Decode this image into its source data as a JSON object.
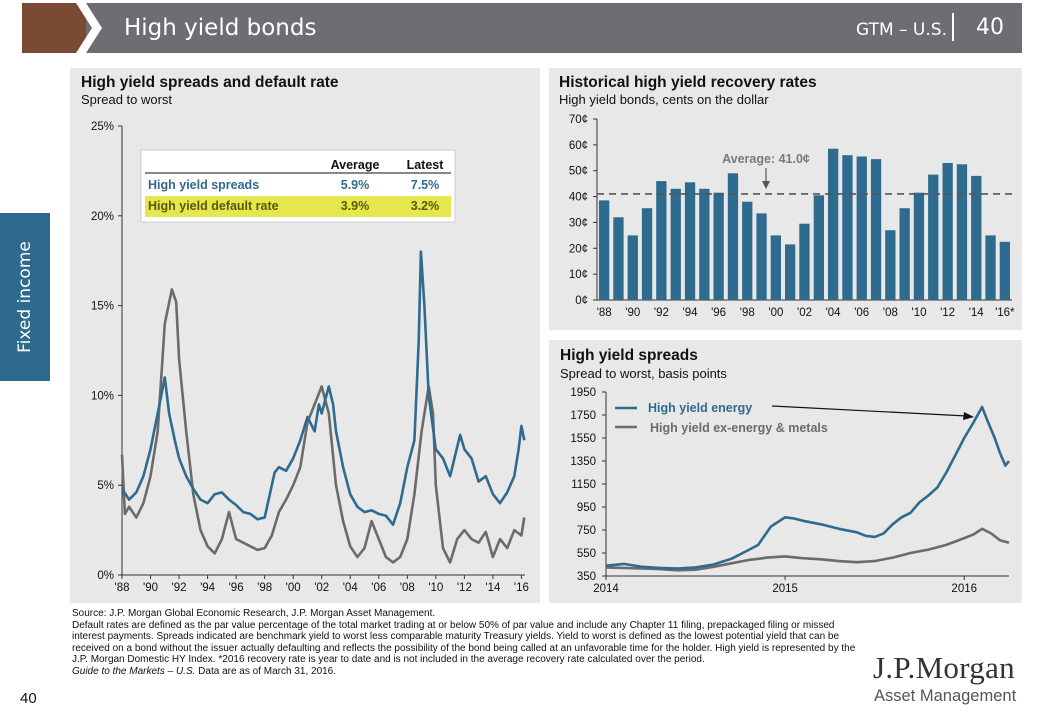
{
  "header": {
    "title": "High yield bonds",
    "region": "GTM – U.S.",
    "page": "40"
  },
  "side_tab": {
    "label": "Fixed income"
  },
  "colors": {
    "header_gray": "#6d6e71",
    "brown": "#7a4a35",
    "side_blue": "#2d6a8e",
    "series_blue": "#2f6b8f",
    "series_gray": "#6b6b6b",
    "bar_blue": "#2f6b8f",
    "highlight": "#e6e64e",
    "highlight_text": "#5a5a00"
  },
  "legend_table": {
    "headers": [
      "Average",
      "Latest"
    ],
    "rows": [
      {
        "label": "High yield spreads",
        "average": "5.9%",
        "latest": "7.5%"
      },
      {
        "label": "High yield default rate",
        "average": "3.9%",
        "latest": "3.2%"
      }
    ]
  },
  "chart_data": [
    {
      "type": "line",
      "title": "High yield spreads and default rate",
      "subtitle": "Spread to worst",
      "ylim": [
        0,
        25
      ],
      "y_ticks": [
        "0%",
        "5%",
        "10%",
        "15%",
        "20%",
        "25%"
      ],
      "x_ticks": [
        "'88",
        "'90",
        "'92",
        "'94",
        "'96",
        "'98",
        "'00",
        "'02",
        "'04",
        "'06",
        "'08",
        "'10",
        "'12",
        "'14",
        "'16"
      ],
      "xlim": [
        1988,
        2016.25
      ],
      "series": [
        {
          "name": "High yield spreads",
          "color": "#2f6b8f",
          "points": [
            [
              1988,
              4.8
            ],
            [
              1988.5,
              4.2
            ],
            [
              1989,
              4.6
            ],
            [
              1989.5,
              5.5
            ],
            [
              1990,
              7.0
            ],
            [
              1990.5,
              9.0
            ],
            [
              1991,
              11.0
            ],
            [
              1991.3,
              9.0
            ],
            [
              1991.7,
              7.5
            ],
            [
              1992,
              6.5
            ],
            [
              1992.5,
              5.5
            ],
            [
              1993,
              4.8
            ],
            [
              1993.5,
              4.2
            ],
            [
              1994,
              4.0
            ],
            [
              1994.5,
              4.5
            ],
            [
              1995,
              4.6
            ],
            [
              1995.5,
              4.2
            ],
            [
              1996,
              3.9
            ],
            [
              1996.5,
              3.5
            ],
            [
              1997,
              3.4
            ],
            [
              1997.5,
              3.1
            ],
            [
              1998,
              3.2
            ],
            [
              1998.7,
              5.7
            ],
            [
              1999,
              6.0
            ],
            [
              1999.5,
              5.8
            ],
            [
              2000,
              6.5
            ],
            [
              2000.5,
              7.5
            ],
            [
              2001,
              8.8
            ],
            [
              2001.5,
              8.0
            ],
            [
              2001.8,
              9.5
            ],
            [
              2002,
              9.0
            ],
            [
              2002.5,
              10.5
            ],
            [
              2002.8,
              9.5
            ],
            [
              2003,
              8.0
            ],
            [
              2003.5,
              6.0
            ],
            [
              2004,
              4.5
            ],
            [
              2004.5,
              3.8
            ],
            [
              2005,
              3.5
            ],
            [
              2005.5,
              3.6
            ],
            [
              2006,
              3.4
            ],
            [
              2006.5,
              3.3
            ],
            [
              2007,
              2.8
            ],
            [
              2007.5,
              4.0
            ],
            [
              2008,
              6.0
            ],
            [
              2008.5,
              7.5
            ],
            [
              2008.8,
              13.0
            ],
            [
              2008.95,
              18.0
            ],
            [
              2009.2,
              15.0
            ],
            [
              2009.5,
              10.0
            ],
            [
              2010,
              7.0
            ],
            [
              2010.5,
              6.5
            ],
            [
              2011,
              5.5
            ],
            [
              2011.7,
              7.8
            ],
            [
              2012,
              7.0
            ],
            [
              2012.5,
              6.5
            ],
            [
              2013,
              5.2
            ],
            [
              2013.5,
              5.5
            ],
            [
              2014,
              4.5
            ],
            [
              2014.5,
              4.0
            ],
            [
              2015,
              4.6
            ],
            [
              2015.5,
              5.5
            ],
            [
              2015.8,
              7.0
            ],
            [
              2016,
              8.3
            ],
            [
              2016.2,
              7.5
            ]
          ]
        },
        {
          "name": "High yield default rate",
          "color": "#6b6b6b",
          "points": [
            [
              1988,
              6.7
            ],
            [
              1988.2,
              3.4
            ],
            [
              1988.5,
              3.8
            ],
            [
              1989,
              3.2
            ],
            [
              1989.5,
              4.0
            ],
            [
              1990,
              5.5
            ],
            [
              1990.5,
              8.0
            ],
            [
              1991,
              14.0
            ],
            [
              1991.5,
              15.9
            ],
            [
              1991.8,
              15.2
            ],
            [
              1992,
              12.0
            ],
            [
              1992.5,
              8.0
            ],
            [
              1993,
              4.5
            ],
            [
              1993.5,
              2.5
            ],
            [
              1994,
              1.6
            ],
            [
              1994.5,
              1.2
            ],
            [
              1995,
              2.0
            ],
            [
              1995.5,
              3.5
            ],
            [
              1996,
              2.0
            ],
            [
              1996.5,
              1.8
            ],
            [
              1997,
              1.6
            ],
            [
              1997.5,
              1.4
            ],
            [
              1998,
              1.5
            ],
            [
              1998.5,
              2.2
            ],
            [
              1999,
              3.5
            ],
            [
              1999.5,
              4.2
            ],
            [
              2000,
              5.0
            ],
            [
              2000.5,
              6.0
            ],
            [
              2001,
              8.5
            ],
            [
              2001.5,
              9.5
            ],
            [
              2002,
              10.5
            ],
            [
              2002.5,
              9.0
            ],
            [
              2003,
              5.0
            ],
            [
              2003.5,
              3.0
            ],
            [
              2004,
              1.6
            ],
            [
              2004.5,
              1.0
            ],
            [
              2005,
              1.5
            ],
            [
              2005.5,
              3.0
            ],
            [
              2006,
              2.0
            ],
            [
              2006.5,
              1.0
            ],
            [
              2007,
              0.7
            ],
            [
              2007.5,
              1.0
            ],
            [
              2008,
              2.0
            ],
            [
              2008.5,
              4.5
            ],
            [
              2009,
              8.0
            ],
            [
              2009.5,
              10.5
            ],
            [
              2009.8,
              9.0
            ],
            [
              2010,
              5.0
            ],
            [
              2010.5,
              1.5
            ],
            [
              2011,
              0.7
            ],
            [
              2011.5,
              2.0
            ],
            [
              2012,
              2.5
            ],
            [
              2012.5,
              2.0
            ],
            [
              2013,
              1.8
            ],
            [
              2013.5,
              2.4
            ],
            [
              2014,
              1.0
            ],
            [
              2014.5,
              2.0
            ],
            [
              2015,
              1.5
            ],
            [
              2015.5,
              2.5
            ],
            [
              2016,
              2.2
            ],
            [
              2016.2,
              3.2
            ]
          ]
        }
      ]
    },
    {
      "type": "bar",
      "title": "Historical high yield recovery rates",
      "subtitle": "High yield bonds, cents on the dollar",
      "ylim": [
        0,
        70
      ],
      "y_ticks": [
        "0¢",
        "10¢",
        "20¢",
        "30¢",
        "40¢",
        "50¢",
        "60¢",
        "70¢"
      ],
      "categories": [
        "'88",
        "'89",
        "'90",
        "'91",
        "'92",
        "'93",
        "'94",
        "'95",
        "'96",
        "'97",
        "'98",
        "'99",
        "'00",
        "'01",
        "'02",
        "'03",
        "'04",
        "'05",
        "'06",
        "'07",
        "'08",
        "'09",
        "'10",
        "'11",
        "'12",
        "'13",
        "'14",
        "'15",
        "'16*"
      ],
      "tick_labels": [
        "'88",
        "'90",
        "'92",
        "'94",
        "'96",
        "'98",
        "'00",
        "'02",
        "'04",
        "'06",
        "'08",
        "'10",
        "'12",
        "'14",
        "'16*"
      ],
      "values": [
        38.5,
        32,
        25,
        35.5,
        46,
        43,
        45.5,
        43,
        41.5,
        49,
        38,
        33.5,
        25,
        21.5,
        29.5,
        40.5,
        58.5,
        56,
        55.5,
        54.5,
        27,
        35.5,
        41.5,
        48.5,
        53,
        52.5,
        48,
        25,
        22.5
      ],
      "average": 41.0,
      "average_label": "Average: 41.0¢"
    },
    {
      "type": "line",
      "title": "High yield spreads",
      "subtitle": "Spread to worst, basis points",
      "ylim": [
        350,
        1950
      ],
      "y_ticks": [
        "350",
        "550",
        "750",
        "950",
        "1150",
        "1350",
        "1550",
        "1750",
        "1950"
      ],
      "x_ticks": [
        "2014",
        "2015",
        "2016"
      ],
      "xlim": [
        2014,
        2016.25
      ],
      "series": [
        {
          "name": "High yield energy",
          "color": "#2f6b8f",
          "points": [
            [
              2014,
              440
            ],
            [
              2014.1,
              455
            ],
            [
              2014.2,
              430
            ],
            [
              2014.3,
              420
            ],
            [
              2014.4,
              415
            ],
            [
              2014.5,
              425
            ],
            [
              2014.6,
              450
            ],
            [
              2014.7,
              500
            ],
            [
              2014.8,
              580
            ],
            [
              2014.85,
              620
            ],
            [
              2014.92,
              780
            ],
            [
              2015,
              860
            ],
            [
              2015.05,
              850
            ],
            [
              2015.1,
              830
            ],
            [
              2015.2,
              800
            ],
            [
              2015.3,
              760
            ],
            [
              2015.4,
              730
            ],
            [
              2015.45,
              700
            ],
            [
              2015.5,
              690
            ],
            [
              2015.55,
              720
            ],
            [
              2015.6,
              800
            ],
            [
              2015.65,
              860
            ],
            [
              2015.7,
              900
            ],
            [
              2015.75,
              990
            ],
            [
              2015.8,
              1050
            ],
            [
              2015.85,
              1120
            ],
            [
              2015.9,
              1250
            ],
            [
              2015.95,
              1400
            ],
            [
              2016,
              1550
            ],
            [
              2016.05,
              1680
            ],
            [
              2016.1,
              1820
            ],
            [
              2016.13,
              1700
            ],
            [
              2016.17,
              1550
            ],
            [
              2016.2,
              1420
            ],
            [
              2016.23,
              1310
            ],
            [
              2016.25,
              1350
            ]
          ]
        },
        {
          "name": "High yield ex-energy & metals",
          "color": "#6b6b6b",
          "points": [
            [
              2014,
              425
            ],
            [
              2014.1,
              420
            ],
            [
              2014.2,
              415
            ],
            [
              2014.3,
              410
            ],
            [
              2014.4,
              400
            ],
            [
              2014.5,
              405
            ],
            [
              2014.6,
              430
            ],
            [
              2014.7,
              460
            ],
            [
              2014.8,
              490
            ],
            [
              2014.9,
              510
            ],
            [
              2015,
              520
            ],
            [
              2015.1,
              505
            ],
            [
              2015.2,
              495
            ],
            [
              2015.3,
              480
            ],
            [
              2015.4,
              470
            ],
            [
              2015.5,
              480
            ],
            [
              2015.6,
              510
            ],
            [
              2015.7,
              550
            ],
            [
              2015.8,
              580
            ],
            [
              2015.9,
              620
            ],
            [
              2016,
              680
            ],
            [
              2016.05,
              710
            ],
            [
              2016.1,
              760
            ],
            [
              2016.15,
              720
            ],
            [
              2016.2,
              660
            ],
            [
              2016.25,
              640
            ]
          ]
        }
      ]
    }
  ],
  "notes": {
    "source": "Source: J.P. Morgan Global Economic Research, J.P. Morgan Asset Management.",
    "body": "Default rates are defined as the par value percentage of the total market trading at or below 50% of par value and include any Chapter 11 filing, prepackaged filing or missed interest payments. Spreads indicated are benchmark yield to worst less comparable maturity Treasury yields. Yield to worst is defined as the lowest potential yield that can be received on a bond without the issuer actually defaulting and reflects the possibility of the bond being called at an unfavorable time for the holder. High yield is represented by the J.P. Morgan Domestic HY Index. *2016 recovery rate is year to date and is not included in the average recovery rate calculated over the period.",
    "guide_italic": "Guide to the Markets – U.S.",
    "guide_rest": " Data are as of March 31, 2016."
  },
  "footer": {
    "page_number": "40",
    "brand": "J.P.Morgan",
    "brand_sub": "Asset Management"
  }
}
